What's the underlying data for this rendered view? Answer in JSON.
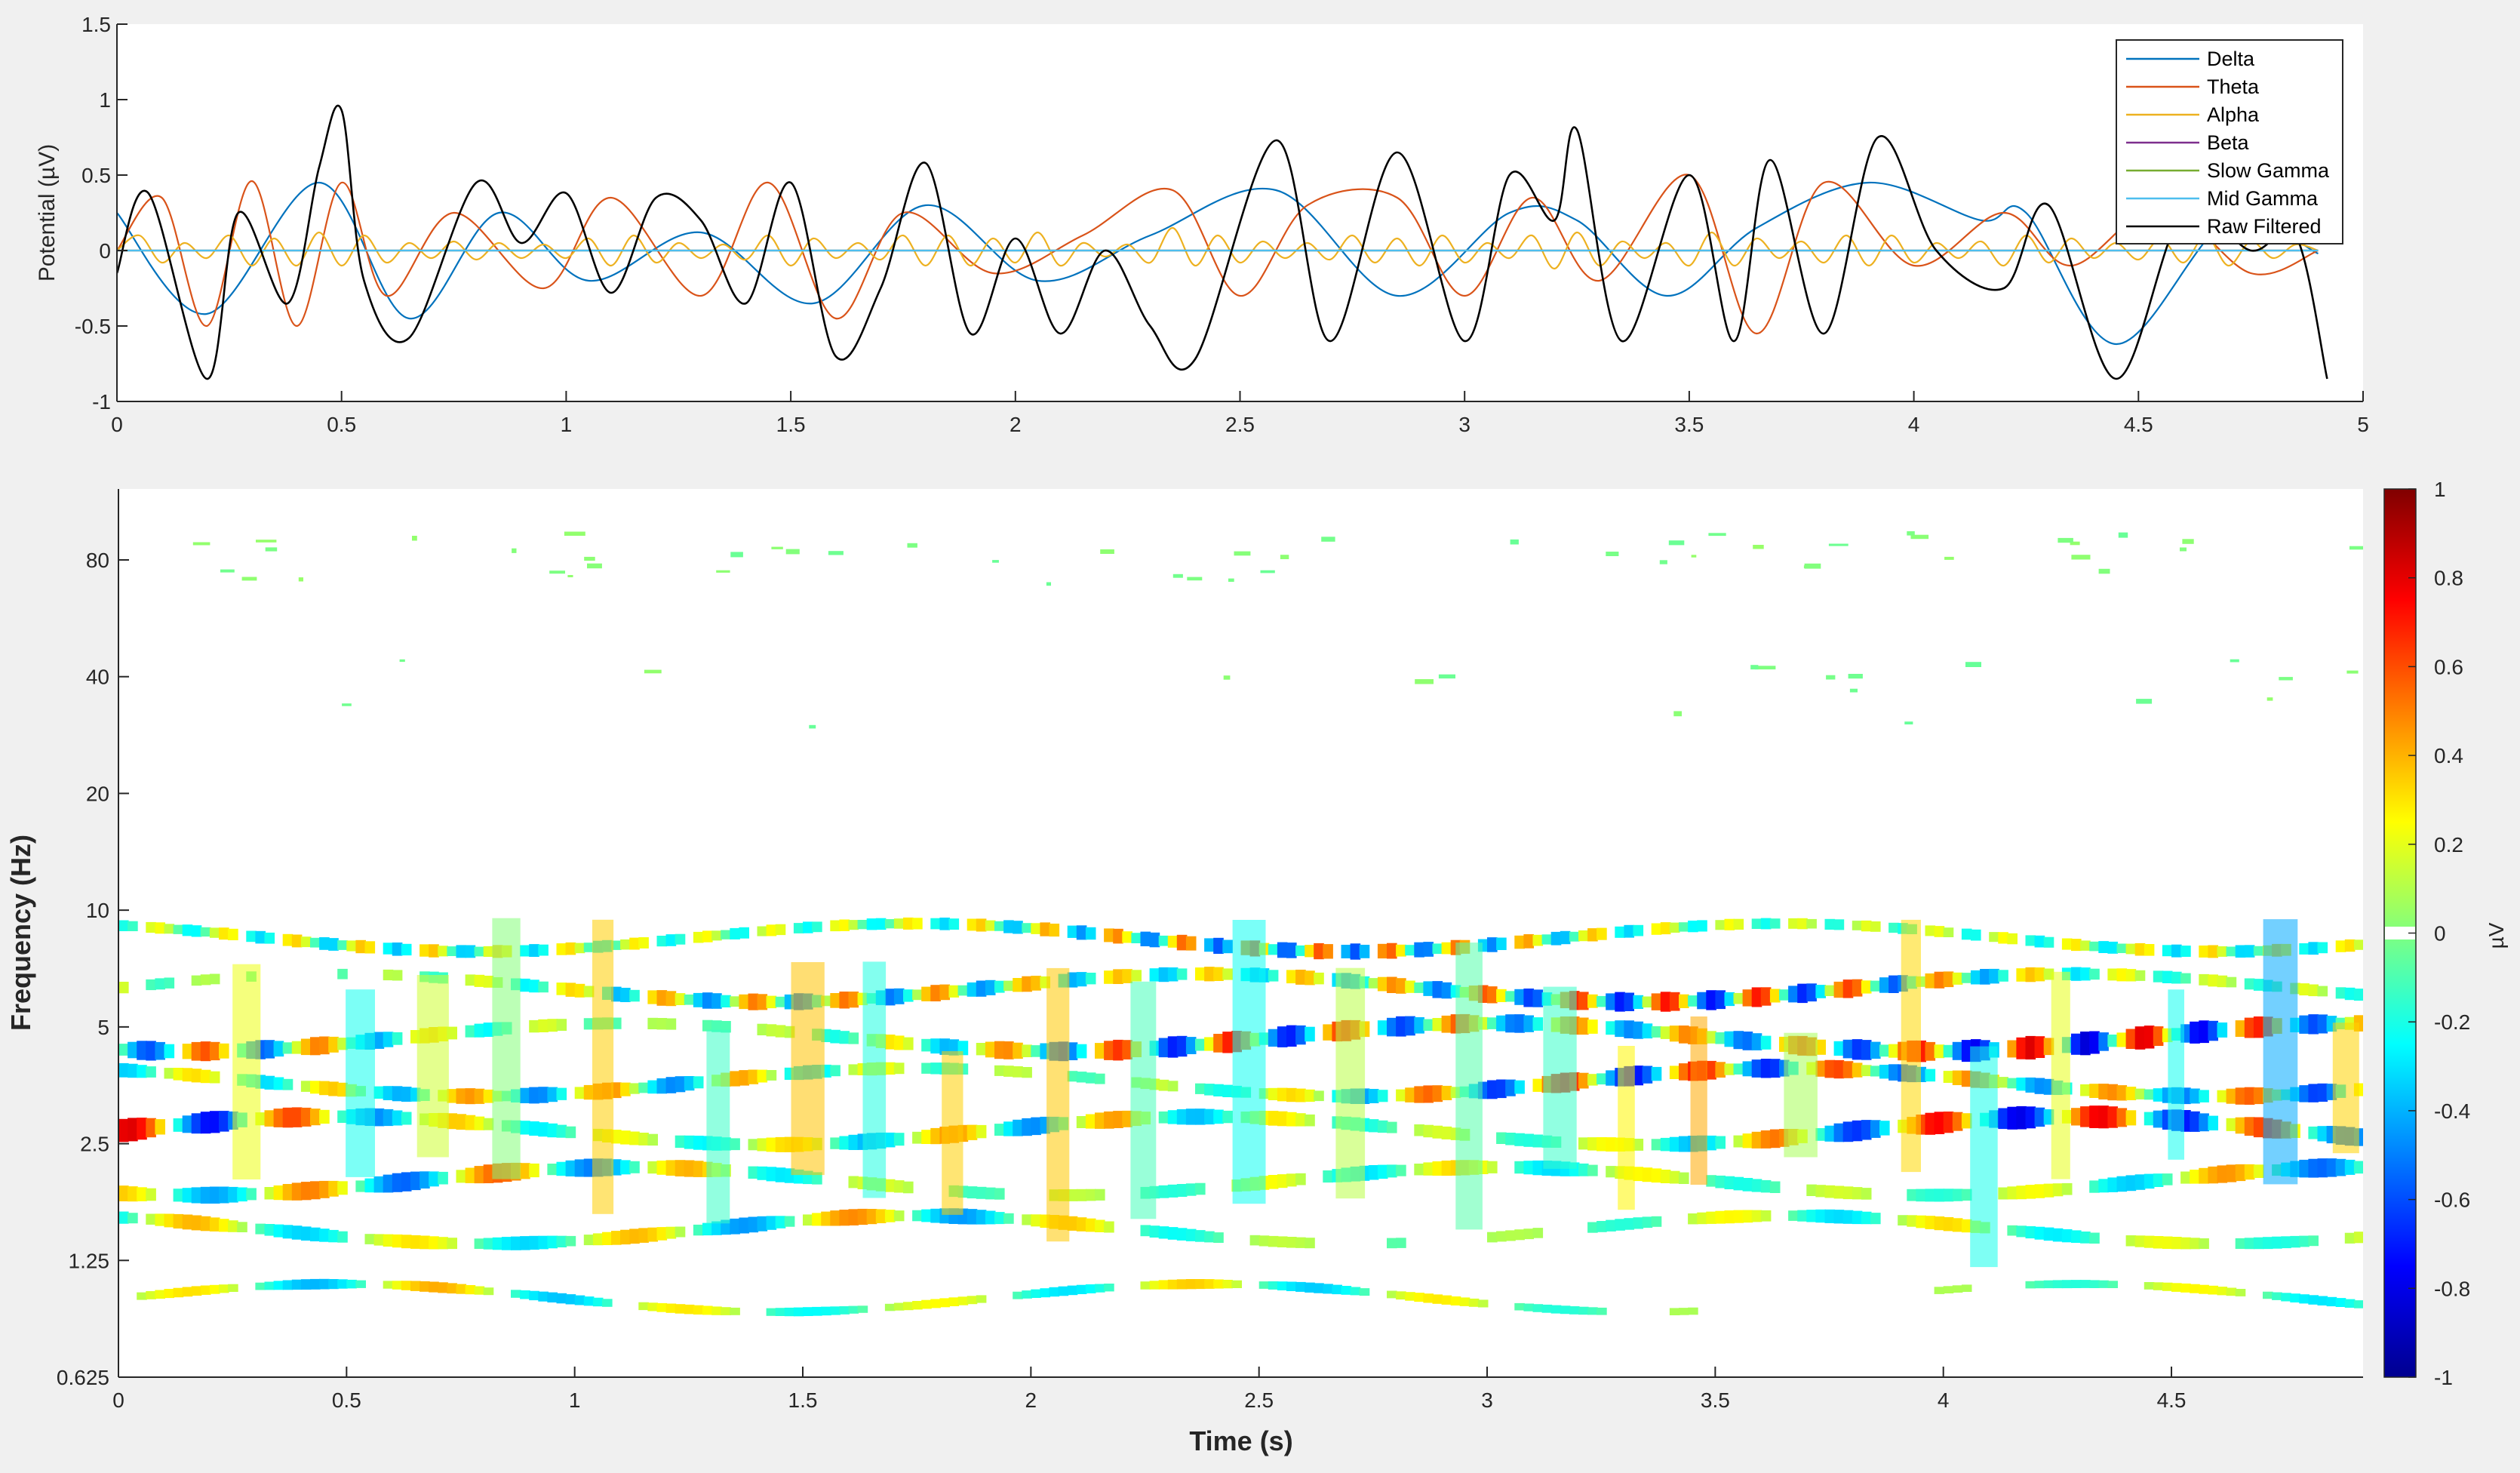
{
  "chart_data": [
    {
      "type": "line",
      "ylabel": "Potential (µV)",
      "xlim": [
        0,
        5
      ],
      "ylim": [
        -1,
        1.5
      ],
      "x_ticks": [
        0,
        0.5,
        1,
        1.5,
        2,
        2.5,
        3,
        3.5,
        4,
        4.5,
        5
      ],
      "x_tick_labels": [
        "0",
        "0.5",
        "1",
        "1.5",
        "2",
        "2.5",
        "3",
        "3.5",
        "4",
        "4.5",
        "5"
      ],
      "y_ticks": [
        -1,
        -0.5,
        0,
        0.5,
        1,
        1.5
      ],
      "y_tick_labels": [
        "-1",
        "-0.5",
        "0",
        "0.5",
        "1",
        "1.5"
      ],
      "grid": false,
      "legend_position": "top-right",
      "series": [
        {
          "name": "Delta",
          "color": "#0072bd",
          "x": [
            0,
            0.2,
            0.45,
            0.65,
            0.85,
            1.05,
            1.3,
            1.55,
            1.8,
            2.05,
            2.3,
            2.58,
            2.85,
            3.1,
            3.25,
            3.45,
            3.65,
            3.9,
            4.15,
            4.25,
            4.45,
            4.7,
            4.9
          ],
          "y": [
            0.25,
            -0.42,
            0.45,
            -0.45,
            0.25,
            -0.2,
            0.12,
            -0.35,
            0.3,
            -0.2,
            0.1,
            0.4,
            -0.3,
            0.25,
            0.2,
            -0.3,
            0.15,
            0.45,
            0.2,
            0.25,
            -0.62,
            0.2,
            -0.02
          ]
        },
        {
          "name": "Theta",
          "color": "#d95319",
          "x": [
            0,
            0.1,
            0.2,
            0.3,
            0.4,
            0.5,
            0.6,
            0.75,
            0.95,
            1.1,
            1.3,
            1.45,
            1.6,
            1.75,
            1.95,
            2.15,
            2.35,
            2.5,
            2.65,
            2.85,
            3.0,
            3.15,
            3.3,
            3.5,
            3.65,
            3.8,
            4.0,
            4.2,
            4.35,
            4.55,
            4.75,
            4.9
          ],
          "y": [
            0.0,
            0.35,
            -0.5,
            0.46,
            -0.5,
            0.45,
            -0.3,
            0.25,
            -0.25,
            0.35,
            -0.3,
            0.45,
            -0.45,
            0.25,
            -0.15,
            0.1,
            0.4,
            -0.3,
            0.3,
            0.35,
            -0.3,
            0.35,
            -0.2,
            0.5,
            -0.55,
            0.45,
            -0.1,
            0.25,
            -0.1,
            0.3,
            -0.15,
            0.0
          ]
        },
        {
          "name": "Alpha",
          "color": "#edb120",
          "x": [
            0,
            0.05,
            0.1,
            0.15,
            0.2,
            0.25,
            0.3,
            0.35,
            0.4,
            0.45,
            0.5,
            0.55,
            0.6,
            0.65,
            0.7,
            0.75,
            0.8,
            0.85,
            0.9,
            0.95,
            1.0,
            1.05,
            1.1,
            1.15,
            1.2,
            1.25,
            1.3,
            1.35,
            1.4,
            1.45,
            1.5,
            1.55,
            1.6,
            1.65,
            1.7,
            1.75,
            1.8,
            1.85,
            1.9,
            1.95,
            2.0,
            2.05,
            2.1,
            2.15,
            2.2,
            2.25,
            2.3,
            2.35,
            2.4,
            2.45,
            2.5,
            2.55,
            2.6,
            2.65,
            2.7,
            2.75,
            2.8,
            2.85,
            2.9,
            2.95,
            3.0,
            3.05,
            3.1,
            3.15,
            3.2,
            3.25,
            3.3,
            3.35,
            3.4,
            3.45,
            3.5,
            3.55,
            3.6,
            3.65,
            3.7,
            3.75,
            3.8,
            3.85,
            3.9,
            3.95,
            4.0,
            4.05,
            4.1,
            4.15,
            4.2,
            4.25,
            4.3,
            4.35,
            4.4,
            4.45,
            4.5,
            4.55,
            4.6,
            4.65,
            4.7,
            4.75,
            4.8,
            4.85,
            4.9
          ],
          "y": [
            0.0,
            0.1,
            -0.08,
            0.05,
            -0.05,
            0.1,
            -0.1,
            0.08,
            -0.1,
            0.12,
            -0.1,
            0.1,
            -0.08,
            0.05,
            -0.05,
            0.06,
            -0.06,
            0.05,
            -0.05,
            0.04,
            -0.05,
            0.08,
            -0.1,
            0.1,
            -0.08,
            0.05,
            -0.05,
            0.04,
            -0.06,
            0.1,
            -0.1,
            0.08,
            -0.05,
            0.05,
            -0.06,
            0.1,
            -0.1,
            0.1,
            -0.1,
            0.08,
            -0.08,
            0.12,
            -0.1,
            0.05,
            -0.04,
            0.04,
            -0.08,
            0.15,
            -0.1,
            0.1,
            -0.08,
            0.06,
            -0.05,
            0.05,
            -0.06,
            0.1,
            -0.08,
            0.08,
            -0.1,
            0.1,
            -0.08,
            0.05,
            -0.05,
            0.1,
            -0.12,
            0.12,
            -0.1,
            0.06,
            -0.05,
            0.05,
            -0.1,
            0.12,
            -0.1,
            0.08,
            -0.05,
            0.06,
            -0.08,
            0.1,
            -0.1,
            0.1,
            -0.08,
            0.05,
            -0.05,
            0.06,
            -0.1,
            0.1,
            -0.08,
            0.08,
            -0.05,
            0.05,
            -0.06,
            0.08,
            -0.08,
            0.1,
            -0.1,
            0.06,
            -0.05,
            0.04,
            0.0
          ]
        },
        {
          "name": "Beta",
          "color": "#7e2f8e",
          "x": [
            0,
            4.9
          ],
          "y": [
            0.0,
            0.0
          ]
        },
        {
          "name": "Slow Gamma",
          "color": "#77ac30",
          "x": [
            0,
            4.9
          ],
          "y": [
            0.0,
            0.0
          ]
        },
        {
          "name": "Mid Gamma",
          "color": "#4dbeee",
          "x": [
            0,
            4.9
          ],
          "y": [
            0.0,
            0.0
          ]
        },
        {
          "name": "Raw Filtered",
          "color": "#000000",
          "x": [
            0,
            0.07,
            0.2,
            0.27,
            0.38,
            0.45,
            0.5,
            0.55,
            0.65,
            0.8,
            0.9,
            1.0,
            1.1,
            1.2,
            1.3,
            1.4,
            1.5,
            1.6,
            1.7,
            1.8,
            1.9,
            2.0,
            2.1,
            2.2,
            2.3,
            2.4,
            2.58,
            2.7,
            2.85,
            3.0,
            3.1,
            3.2,
            3.25,
            3.35,
            3.5,
            3.6,
            3.68,
            3.8,
            3.92,
            4.05,
            4.2,
            4.3,
            4.45,
            4.6,
            4.75,
            4.85,
            4.92
          ],
          "y": [
            -0.15,
            0.38,
            -0.85,
            0.25,
            -0.35,
            0.55,
            0.93,
            -0.2,
            -0.58,
            0.45,
            0.05,
            0.38,
            -0.28,
            0.35,
            0.2,
            -0.35,
            0.45,
            -0.7,
            -0.25,
            0.58,
            -0.55,
            0.08,
            -0.55,
            0.0,
            -0.5,
            -0.72,
            0.73,
            -0.6,
            0.65,
            -0.6,
            0.5,
            0.2,
            0.8,
            -0.6,
            0.5,
            -0.6,
            0.6,
            -0.55,
            0.75,
            0.0,
            -0.25,
            0.3,
            -0.85,
            0.25,
            0.0,
            0.1,
            -0.85
          ]
        }
      ]
    },
    {
      "type": "heatmap",
      "xlabel": "Time (s)",
      "ylabel": "Frequency (Hz)",
      "xlim": [
        0,
        4.92
      ],
      "ylim_log2": [
        0.625,
        160
      ],
      "x_ticks": [
        0,
        0.5,
        1,
        1.5,
        2,
        2.5,
        3,
        3.5,
        4,
        4.5
      ],
      "x_tick_labels": [
        "0",
        "0.5",
        "1",
        "1.5",
        "2",
        "2.5",
        "3",
        "3.5",
        "4",
        "4.5"
      ],
      "y_ticks": [
        0.625,
        1.25,
        2.5,
        5,
        10,
        20,
        40,
        80
      ],
      "y_tick_labels": [
        "0.625",
        "1.25",
        "2.5",
        "5",
        "10",
        "20",
        "40",
        "80"
      ],
      "colormap": "jet",
      "colorbar": {
        "label": "µV",
        "ticks": [
          -1,
          -0.8,
          -0.6,
          -0.4,
          -0.2,
          0,
          0.2,
          0.4,
          0.6,
          0.8,
          1
        ],
        "tick_labels": [
          "-1",
          "-0.8",
          "-0.6",
          "-0.4",
          "-0.2",
          "0",
          "0.2",
          "0.4",
          "0.6",
          "0.8",
          "1"
        ]
      }
    }
  ]
}
